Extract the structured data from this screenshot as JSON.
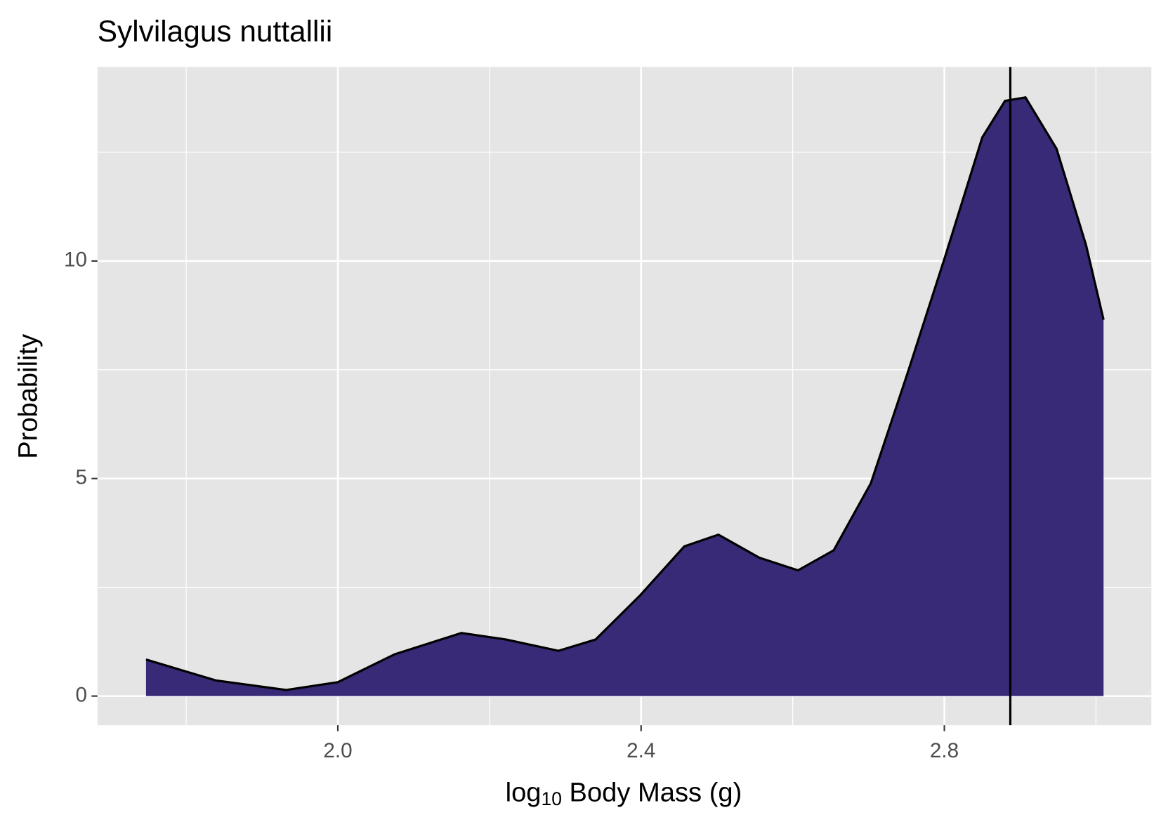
{
  "chart_data": {
    "type": "density",
    "title": "Sylvilagus nuttallii",
    "x_label": {
      "base": "log",
      "subscript": "10",
      "rest": " Body Mass (g)"
    },
    "y_label": "Probability",
    "x": [
      1.747,
      1.839,
      1.932,
      2.0,
      2.075,
      2.163,
      2.222,
      2.291,
      2.34,
      2.399,
      2.457,
      2.502,
      2.556,
      2.607,
      2.654,
      2.703,
      2.752,
      2.801,
      2.85,
      2.88,
      2.907,
      2.948,
      2.987,
      3.01
    ],
    "values": [
      0.84,
      0.36,
      0.14,
      0.32,
      0.96,
      1.45,
      1.3,
      1.04,
      1.3,
      2.32,
      3.44,
      3.71,
      3.18,
      2.89,
      3.35,
      4.89,
      7.45,
      10.1,
      12.84,
      13.68,
      13.76,
      12.58,
      10.36,
      8.65
    ],
    "color": "#382a77",
    "reference_line": 2.887,
    "xlim": [
      1.683,
      3.073
    ],
    "ylim": [
      -0.67,
      14.46
    ],
    "xticks": [
      {
        "value": 2.0,
        "label": "2.0"
      },
      2.4,
      2.8
    ],
    "yticks": [
      0,
      5,
      10
    ],
    "x_minor_gridlines": [
      1.8,
      2.2,
      2.6,
      3.0
    ],
    "y_minor_gridlines": [
      2.5,
      7.5,
      12.5
    ],
    "grid": true
  }
}
